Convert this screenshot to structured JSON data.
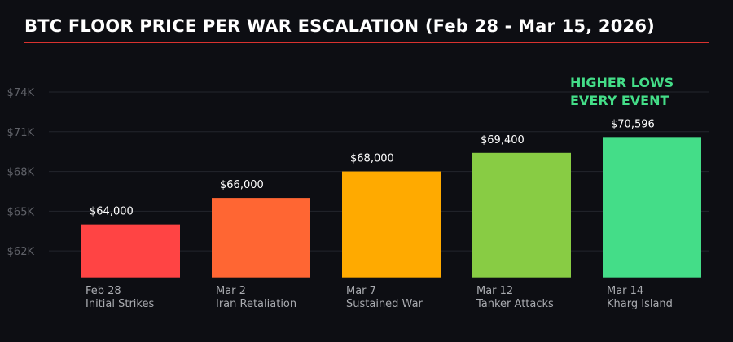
{
  "chart_data": {
    "type": "bar",
    "title": "BTC FLOOR PRICE PER WAR ESCALATION (Feb 28 - Mar 15, 2026)",
    "categories": [
      {
        "date": "Feb 28",
        "event": "Initial Strikes"
      },
      {
        "date": "Mar 2",
        "event": "Iran Retaliation"
      },
      {
        "date": "Mar 7",
        "event": "Sustained War"
      },
      {
        "date": "Mar 12",
        "event": "Tanker Attacks"
      },
      {
        "date": "Mar 14",
        "event": "Kharg Island"
      }
    ],
    "values": [
      64000,
      66000,
      68000,
      69400,
      70596
    ],
    "data_labels": [
      "$64,000",
      "$66,000",
      "$68,000",
      "$69,400",
      "$70,596"
    ],
    "colors": [
      "#ff4444",
      "#ff6633",
      "#ffaa00",
      "#88cc44",
      "#44dd88"
    ],
    "ylim": [
      60000,
      75000
    ],
    "yticks": [
      62000,
      65000,
      68000,
      71000,
      74000
    ],
    "ytick_labels": [
      "$62K",
      "$65K",
      "$68K",
      "$71K",
      "$74K"
    ],
    "grid": "horizontal",
    "annotation": {
      "lines": [
        "HIGHER LOWS",
        "EVERY EVENT"
      ],
      "color": "#44dd88"
    },
    "xlabel": "",
    "ylabel": ""
  },
  "colors": {
    "background": "#0d0e13",
    "title_rule": "#d8322f"
  }
}
